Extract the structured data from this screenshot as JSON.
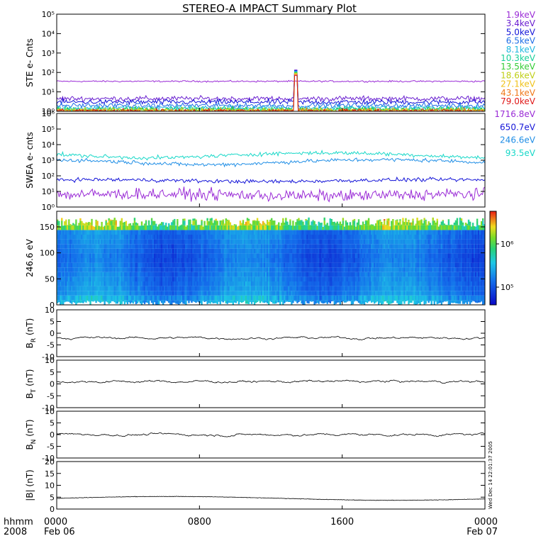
{
  "title": "STEREO-A IMPACT Summary Plot",
  "footer": {
    "left_line1": "hhmm",
    "left_line2": "2008",
    "side_stamp": "Wed Dec 14 22:01:37 2005"
  },
  "chart_data": [
    {
      "panel": "ste",
      "type": "line",
      "ylabel": "STE e- Cnts",
      "yscale": "log",
      "ylim": [
        1,
        100000
      ],
      "yticks": [
        "10⁰",
        "10¹",
        "10²",
        "10³",
        "10⁴",
        "10⁵"
      ],
      "legend_position": "right",
      "series": [
        {
          "name": "1.9keV",
          "color": "#9a2bd6",
          "level": 35
        },
        {
          "name": "3.4keV",
          "color": "#6a1fd0",
          "level": 4.5
        },
        {
          "name": "5.0keV",
          "color": "#1414d8",
          "level": 3
        },
        {
          "name": "6.5keV",
          "color": "#1f6ee6",
          "level": 2
        },
        {
          "name": "8.1keV",
          "color": "#1fb8e0",
          "level": 1.5
        },
        {
          "name": "10.3keV",
          "color": "#18d09a",
          "level": 1.3
        },
        {
          "name": "13.5keV",
          "color": "#33cc33",
          "level": 1.2
        },
        {
          "name": "18.6keV",
          "color": "#bfcf16",
          "level": 1.1
        },
        {
          "name": "27.1keV",
          "color": "#f0c218",
          "level": 1.05
        },
        {
          "name": "43.1keV",
          "color": "#f07818",
          "level": 1.02
        },
        {
          "name": "79.0keV",
          "color": "#e01818",
          "level": 1.01
        }
      ],
      "spike": {
        "x_hour": 13.4,
        "peak": 140
      }
    },
    {
      "panel": "swea",
      "type": "line",
      "ylabel": "SWEA e- cnts",
      "yscale": "log",
      "ylim": [
        1,
        1000000
      ],
      "yticks": [
        "10⁰",
        "10¹",
        "10²",
        "10³",
        "10⁴",
        "10⁵",
        "10⁶"
      ],
      "legend_position": "right",
      "series": [
        {
          "name": "1716.8eV",
          "color": "#9a2bd6",
          "level": 6
        },
        {
          "name": "650.7eV",
          "color": "#1414d8",
          "level": 50
        },
        {
          "name": "246.6eV",
          "color": "#1f8ee6",
          "level": 800
        },
        {
          "name": "93.5eV",
          "color": "#18d8c8",
          "level": 2200
        }
      ]
    },
    {
      "panel": "spectrogram",
      "type": "heatmap",
      "ylabel": "246.6 eV",
      "ylim": [
        0,
        180
      ],
      "yticks": [
        0,
        50,
        100,
        150
      ],
      "colorbar_ticks": [
        "10⁵",
        "10⁶"
      ]
    },
    {
      "panel": "br",
      "type": "line",
      "ylabel": "B",
      "ylabel_sub": "R",
      "ylabel_unit": "(nT)",
      "ylim": [
        -10,
        10
      ],
      "yticks": [
        -10,
        -5,
        0,
        5,
        10
      ],
      "mean": -2
    },
    {
      "panel": "bt",
      "type": "line",
      "ylabel": "B",
      "ylabel_sub": "T",
      "ylabel_unit": "(nT)",
      "ylim": [
        -10,
        10
      ],
      "yticks": [
        -10,
        -5,
        0,
        5,
        10
      ],
      "mean": 1
    },
    {
      "panel": "bn",
      "type": "line",
      "ylabel": "B",
      "ylabel_sub": "N",
      "ylabel_unit": "(nT)",
      "ylim": [
        -10,
        10
      ],
      "yticks": [
        -10,
        -5,
        0,
        5,
        10
      ],
      "mean": 0
    },
    {
      "panel": "bmag",
      "type": "line",
      "ylabel": "|B| (nT)",
      "ylim": [
        0,
        20
      ],
      "yticks": [
        0,
        5,
        10,
        15,
        20
      ],
      "mean": 4.5
    }
  ],
  "xaxis": {
    "range_hours": [
      0,
      24
    ],
    "ticks": [
      {
        "hour": 0,
        "line1": "0000",
        "line2": "Feb 06"
      },
      {
        "hour": 8,
        "line1": "0800",
        "line2": ""
      },
      {
        "hour": 16,
        "line1": "1600",
        "line2": ""
      },
      {
        "hour": 24,
        "line1": "0000",
        "line2": "Feb 07"
      }
    ]
  }
}
